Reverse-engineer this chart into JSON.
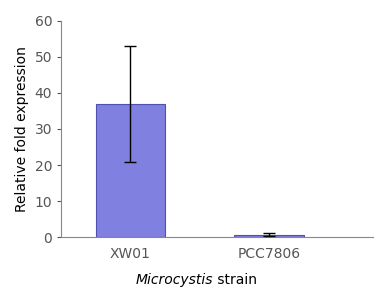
{
  "categories": [
    "XW01",
    "PCC7806"
  ],
  "values": [
    37,
    0.8
  ],
  "errors_upper": [
    16,
    0.3
  ],
  "errors_lower": [
    16,
    0.3
  ],
  "bar_color": "#8080e0",
  "bar_edge_color": "#5050b0",
  "ylim": [
    0,
    60
  ],
  "yticks": [
    0,
    10,
    20,
    30,
    40,
    50,
    60
  ],
  "ylabel": "Relative fold expression",
  "xlabel_regular": " strain",
  "xlabel_italic": "Microcystis",
  "bar_width": 0.5,
  "x_positions": [
    1,
    2
  ],
  "error_capsize": 4,
  "background_color": "#ffffff",
  "tick_label_fontsize": 10,
  "axis_label_fontsize": 10,
  "error_linewidth": 1.0
}
